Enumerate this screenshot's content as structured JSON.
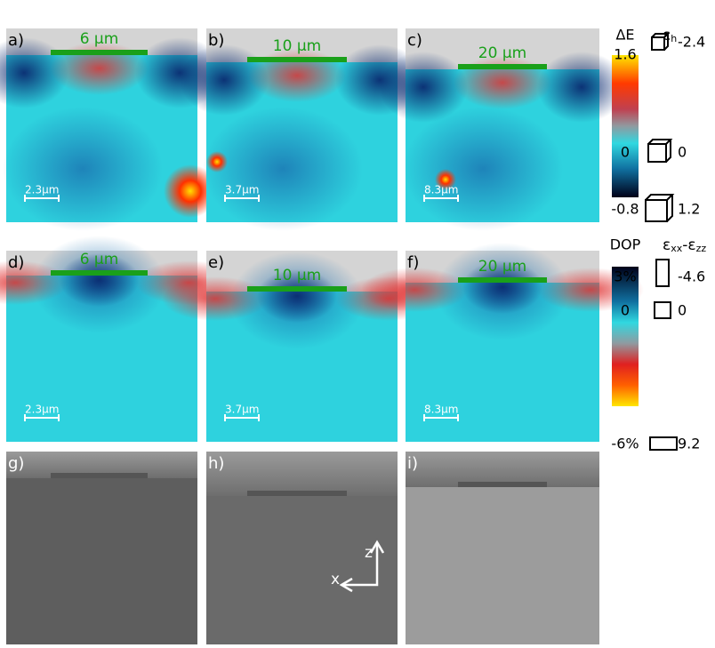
{
  "panels": [
    {
      "label": "a)",
      "stripe": "6 μm",
      "scale": "2.3μm"
    },
    {
      "label": "b)",
      "stripe": "10 μm",
      "scale": "3.7μm"
    },
    {
      "label": "c)",
      "stripe": "20 μm",
      "scale": "8.3μm"
    },
    {
      "label": "d)",
      "stripe": "6 μm",
      "scale": "2.3μm"
    },
    {
      "label": "e)",
      "stripe": "10 μm",
      "scale": "3.7μm"
    },
    {
      "label": "f)",
      "stripe": "20 μm",
      "scale": "8.3μm"
    },
    {
      "label": "g)"
    },
    {
      "label": "h)"
    },
    {
      "label": "i)"
    }
  ],
  "colorbars": [
    {
      "title": "ΔE",
      "ticks": [
        "1.6",
        "0",
        "-0.8"
      ],
      "strain_symbol": "ε",
      "strain_sub": "h",
      "strain_ticks": [
        "-2.4",
        "0",
        "1.2"
      ]
    },
    {
      "title": "DOP",
      "ticks": [
        "3%",
        "0",
        "-6%"
      ],
      "strain_symbol": "ε",
      "strain_sub": "xx",
      "strain_mid": "-ε",
      "strain_sub2": "zz",
      "strain_ticks": [
        "-4.6",
        "0",
        "9.2"
      ]
    }
  ],
  "axes": {
    "z": "z",
    "x": "x"
  }
}
